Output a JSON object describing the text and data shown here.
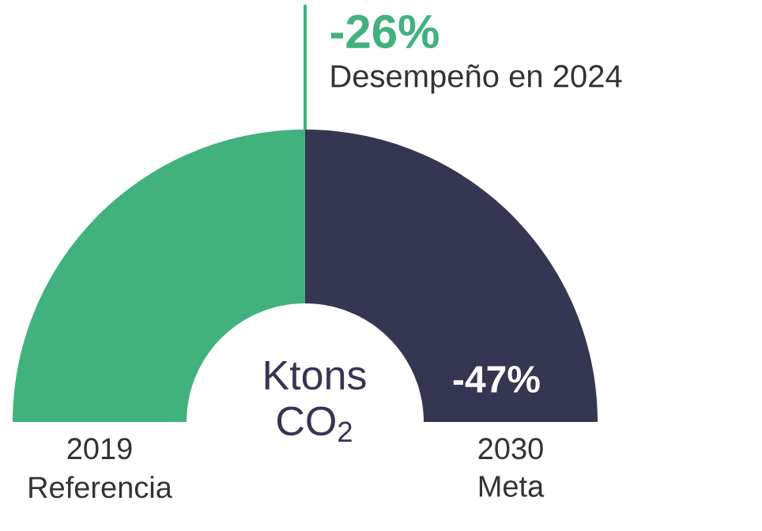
{
  "chart_data": {
    "type": "donut",
    "categories": [
      null,
      null
    ],
    "values": [
      50,
      50
    ],
    "colors": [
      "#41b17e",
      "#353651"
    ],
    "annotations": [
      "-26%",
      "Desempeño en 2024",
      "-47%",
      "Ktons CO$_{2}$",
      "Referencia",
      "Meta",
      "2019",
      "2030"
    ]
  }
}
